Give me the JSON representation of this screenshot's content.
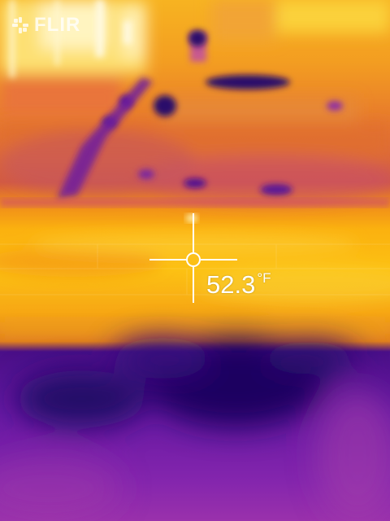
{
  "brand": {
    "name": "FLIR",
    "icon": "flir-logo-icon"
  },
  "spot_meter": {
    "icon": "crosshair-reticle-icon",
    "value": "52.3",
    "unit": "°F"
  },
  "palette": {
    "hot": "#fffbe8",
    "warm": "#fbc617",
    "mid": "#ef7d1a",
    "cool": "#b03c9a",
    "cold": "#3a0b86"
  }
}
